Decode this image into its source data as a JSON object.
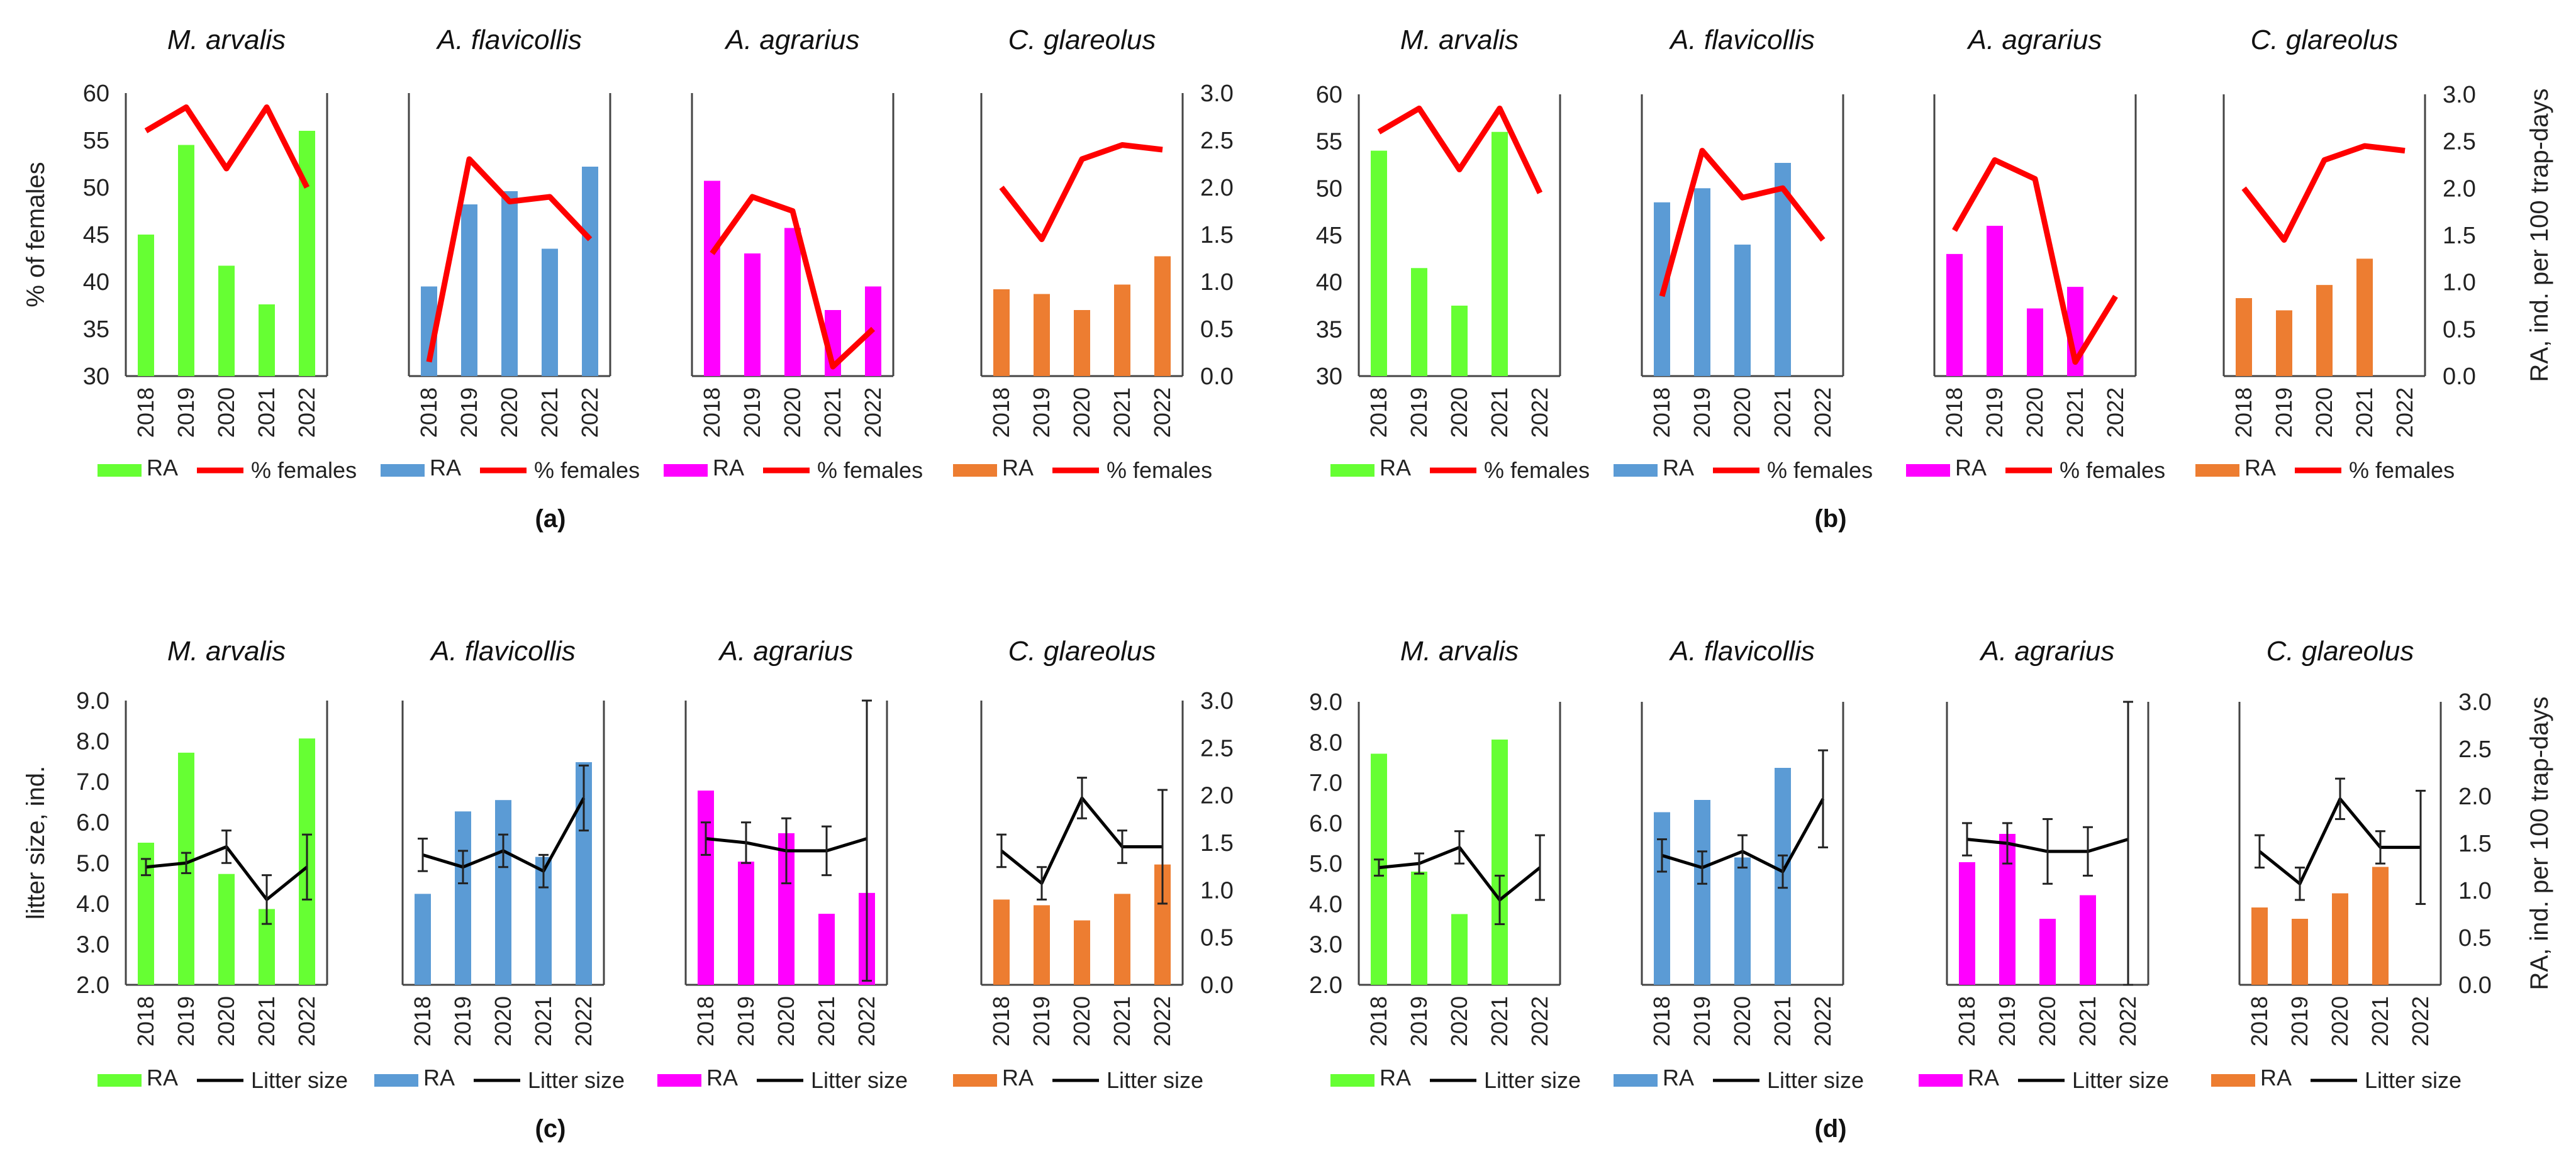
{
  "colors": {
    "species": {
      "M. arvalis": "#66ff33",
      "A. flavicollis": "#5b9bd5",
      "A. agrarius": "#ff00ff",
      "C. glareolus": "#ed7d31"
    },
    "females_line": "#ff0000",
    "litter_line": "#000000"
  },
  "labels": {
    "panels": [
      "(a)",
      "(b)",
      "(c)",
      "(d)"
    ],
    "y_left_top": "% of females",
    "y_left_bottom": "litter size, ind.",
    "y_right": "RA, ind. per 100 trap-days",
    "legend_bar": "RA",
    "legend_line_top": "% females",
    "legend_line_bottom": "Litter size"
  },
  "chart_data": [
    {
      "panel": "(a)",
      "type": "bar+line",
      "years": [
        "2018",
        "2019",
        "2020",
        "2021",
        "2022"
      ],
      "y_left": {
        "label": "% of females",
        "range": [
          30,
          60
        ],
        "ticks": [
          "30",
          "35",
          "40",
          "45",
          "50",
          "55",
          "60"
        ]
      },
      "y_right": {
        "label": "RA, ind. per 100 trap-days",
        "range": [
          0,
          3
        ],
        "ticks": [
          "0.0",
          "0.5",
          "1.0",
          "1.5",
          "2.0",
          "2.5",
          "3.0"
        ]
      },
      "species": [
        {
          "name": "M. arvalis",
          "ra": [
            1.5,
            2.45,
            1.17,
            0.76,
            2.6
          ],
          "females": [
            56,
            58.5,
            52,
            58.5,
            50
          ]
        },
        {
          "name": "A. flavicollis",
          "ra": [
            0.95,
            1.82,
            1.96,
            1.35,
            2.22
          ],
          "females": [
            31.5,
            53,
            48.5,
            49,
            44.5
          ]
        },
        {
          "name": "A. agrarius",
          "ra": [
            2.07,
            1.3,
            1.57,
            0.7,
            0.95
          ],
          "females": [
            43,
            49,
            47.5,
            31,
            35
          ]
        },
        {
          "name": "C. glareolus",
          "ra": [
            0.92,
            0.87,
            0.7,
            0.97,
            1.27
          ],
          "females": [
            50,
            44.5,
            53,
            54.5,
            54
          ]
        }
      ]
    },
    {
      "panel": "(b)",
      "type": "bar+line",
      "years": [
        "2018",
        "2019",
        "2020",
        "2021",
        "2022"
      ],
      "y_left": {
        "label": "",
        "range": [
          30,
          60
        ],
        "ticks": [
          "30",
          "35",
          "40",
          "45",
          "50",
          "55",
          "60"
        ]
      },
      "y_right": {
        "label": "RA, ind. per 100 trap-days",
        "range": [
          0,
          3
        ],
        "ticks": [
          "0.0",
          "0.5",
          "1.0",
          "1.5",
          "2.0",
          "2.5",
          "3.0"
        ]
      },
      "species": [
        {
          "name": "M. arvalis",
          "ra": [
            2.4,
            1.15,
            0.75,
            2.6,
            null
          ],
          "females": [
            56,
            58.5,
            52,
            58.5,
            49.5
          ]
        },
        {
          "name": "A. flavicollis",
          "ra": [
            1.85,
            2.0,
            1.4,
            2.27,
            null
          ],
          "females": [
            38.5,
            54,
            49,
            50,
            44.5
          ]
        },
        {
          "name": "A. agrarius",
          "ra": [
            1.3,
            1.6,
            0.72,
            0.95,
            null
          ],
          "females": [
            45.5,
            53,
            51,
            31.5,
            38.5
          ]
        },
        {
          "name": "C. glareolus",
          "ra": [
            0.83,
            0.7,
            0.97,
            1.25,
            null
          ],
          "females": [
            50,
            44.5,
            53,
            54.5,
            54
          ]
        }
      ]
    },
    {
      "panel": "(c)",
      "type": "bar+line+errorbars",
      "years": [
        "2018",
        "2019",
        "2020",
        "2021",
        "2022"
      ],
      "y_left": {
        "label": "litter size, ind.",
        "range": [
          2,
          9
        ],
        "ticks": [
          "2.0",
          "3.0",
          "4.0",
          "5.0",
          "6.0",
          "7.0",
          "8.0",
          "9.0"
        ]
      },
      "y_right": {
        "label": "RA, ind. per 100 trap-days",
        "range": [
          0,
          3
        ],
        "ticks": [
          "0.0",
          "0.5",
          "1.0",
          "1.5",
          "2.0",
          "2.5",
          "3.0"
        ]
      },
      "species": [
        {
          "name": "M. arvalis",
          "ra": [
            1.5,
            2.45,
            1.17,
            0.8,
            2.6
          ],
          "litter": [
            4.9,
            5.0,
            5.4,
            4.1,
            4.9
          ],
          "err": [
            0.2,
            0.25,
            0.4,
            0.6,
            0.8
          ]
        },
        {
          "name": "A. flavicollis",
          "ra": [
            0.96,
            1.83,
            1.95,
            1.35,
            2.35
          ],
          "litter": [
            5.2,
            4.9,
            5.3,
            4.8,
            6.6
          ],
          "err": [
            0.4,
            0.4,
            0.4,
            0.4,
            0.8
          ]
        },
        {
          "name": "A. agrarius",
          "ra": [
            2.05,
            1.3,
            1.6,
            0.75,
            0.97
          ],
          "litter": [
            5.6,
            5.5,
            5.3,
            5.3,
            5.6
          ],
          "err": [
            0.4,
            0.5,
            0.8,
            0.6,
            3.5
          ]
        },
        {
          "name": "C. glareolus",
          "ra": [
            0.9,
            0.84,
            0.68,
            0.96,
            1.27
          ],
          "litter": [
            5.3,
            4.5,
            6.6,
            5.4,
            5.4
          ],
          "err": [
            0.4,
            0.4,
            0.5,
            0.4,
            1.4
          ]
        }
      ]
    },
    {
      "panel": "(d)",
      "type": "bar+line+errorbars",
      "years": [
        "2018",
        "2019",
        "2020",
        "2021",
        "2022"
      ],
      "y_left": {
        "label": "",
        "range": [
          2,
          9
        ],
        "ticks": [
          "2.0",
          "3.0",
          "4.0",
          "5.0",
          "6.0",
          "7.0",
          "8.0",
          "9.0"
        ]
      },
      "y_right": {
        "label": "RA, ind. per 100 trap-days",
        "range": [
          0,
          3
        ],
        "ticks": [
          "0.0",
          "0.5",
          "1.0",
          "1.5",
          "2.0",
          "2.5",
          "3.0"
        ]
      },
      "species": [
        {
          "name": "M. arvalis",
          "ra": [
            2.45,
            1.2,
            0.75,
            2.6,
            null
          ],
          "litter": [
            4.9,
            5.0,
            5.4,
            4.1,
            4.9
          ],
          "err": [
            0.2,
            0.25,
            0.4,
            0.6,
            0.8
          ]
        },
        {
          "name": "A. flavicollis",
          "ra": [
            1.83,
            1.96,
            1.35,
            2.3,
            null
          ],
          "litter": [
            5.2,
            4.9,
            5.3,
            4.8,
            6.6
          ],
          "err": [
            0.4,
            0.4,
            0.4,
            0.4,
            1.2
          ]
        },
        {
          "name": "A. agrarius",
          "ra": [
            1.3,
            1.6,
            0.7,
            0.95,
            null
          ],
          "litter": [
            5.6,
            5.5,
            5.3,
            5.3,
            5.6
          ],
          "err": [
            0.4,
            0.5,
            0.8,
            0.6,
            3.6
          ]
        },
        {
          "name": "C. glareolus",
          "ra": [
            0.82,
            0.7,
            0.97,
            1.25,
            null
          ],
          "litter": [
            5.3,
            4.5,
            6.6,
            5.4,
            5.4
          ],
          "err": [
            0.4,
            0.4,
            0.5,
            0.4,
            1.4
          ]
        }
      ]
    }
  ]
}
